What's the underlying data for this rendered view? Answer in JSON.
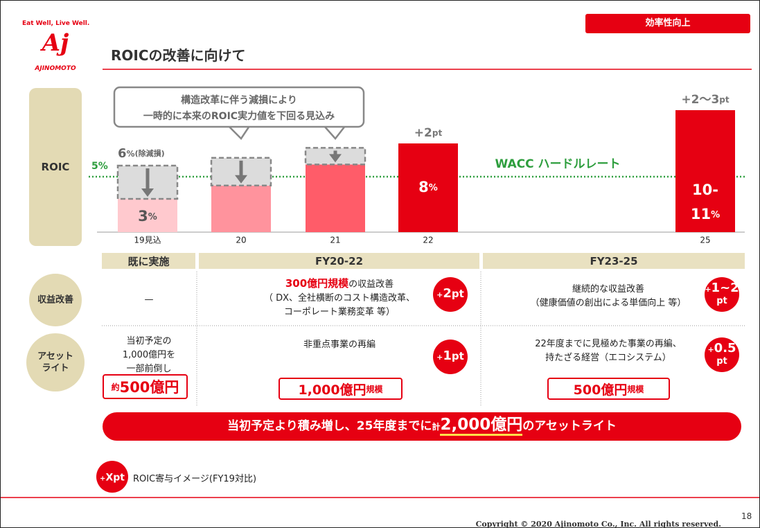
{
  "header": {
    "slogan": "Eat Well, Live Well.",
    "logo": "Aj",
    "brand": "AJINOMOTO",
    "tag": "効率性向上",
    "title": "ROICの改善に向けて"
  },
  "roic": {
    "label": "ROIC",
    "unit": "%",
    "pt_unit": "pt",
    "callout": [
      "構造改革に伴う減損により",
      "一時的に本来のROIC実力値を下回る見込み"
    ],
    "wacc": {
      "value": 5,
      "label": "5%",
      "name": "WACC ハードルレート"
    },
    "bars": [
      {
        "category": "19見込",
        "value": 3,
        "label": "3",
        "before": 6,
        "before_label": "6",
        "before_note": "(除減損)",
        "color": "#ffc9ce"
      },
      {
        "category": "20",
        "value": 4.2,
        "before": 6.7,
        "color": "#ff939d"
      },
      {
        "category": "21",
        "value": 6.1,
        "before": 7.6,
        "color": "#ff5c69"
      },
      {
        "category": "22",
        "value": 8,
        "label": "8",
        "delta": "+2",
        "color": "#e60012"
      },
      {
        "category": "25",
        "value": 11,
        "label_lines": [
          "10-",
          "11"
        ],
        "delta": "+2〜3",
        "color": "#e60012"
      }
    ]
  },
  "table": {
    "columns": [
      "既に実施",
      "FY20-22",
      "FY23-25"
    ],
    "rows": [
      {
        "label": [
          "収益改善"
        ],
        "cells": [
          {
            "text": [
              "—"
            ]
          },
          {
            "highlight": "300億円規模",
            "text": [
              "の収益改善",
              "（ DX、全社横断のコスト構造改革、",
              "コーポレート業務変革 等）"
            ],
            "badge": {
              "sign": "+",
              "value": "2",
              "unit": "pt"
            }
          },
          {
            "text": [
              "継続的な収益改善",
              "（健康価値の創出による単価向上 等）"
            ],
            "badge": {
              "sign": "+",
              "value": "1~2",
              "unit": "pt"
            }
          }
        ]
      },
      {
        "label": [
          "アセット",
          "ライト"
        ],
        "cells": [
          {
            "text": [
              "当初予定の",
              "1,000億円を",
              "一部前倒し"
            ],
            "amount": {
              "prefix": "約",
              "value": "500億円"
            }
          },
          {
            "text": [
              "非重点事業の再編"
            ],
            "badge": {
              "sign": "+",
              "value": "1",
              "unit": "pt"
            },
            "amount": {
              "value": "1,000億円",
              "suffix": "規模"
            }
          },
          {
            "text": [
              "22年度までに見極めた事業の再編、",
              "持たざる経営（エコシステム）"
            ],
            "badge": {
              "sign": "+",
              "value": "0.5",
              "unit": "pt"
            },
            "amount": {
              "value": "500億円",
              "suffix": "規模"
            }
          }
        ]
      }
    ]
  },
  "banner": {
    "pre": "当初予定より積み増し、25年度までに",
    "kei": "計",
    "amount": "2,000億円",
    "post": "のアセットライト"
  },
  "legend": {
    "sign": "+",
    "value": "Xpt",
    "text": "ROIC寄与イメージ(FY19対比)"
  },
  "footer": {
    "copyright": "Copyright © 2020 Ajinomoto Co., Inc. All rights reserved.",
    "page": "18"
  }
}
